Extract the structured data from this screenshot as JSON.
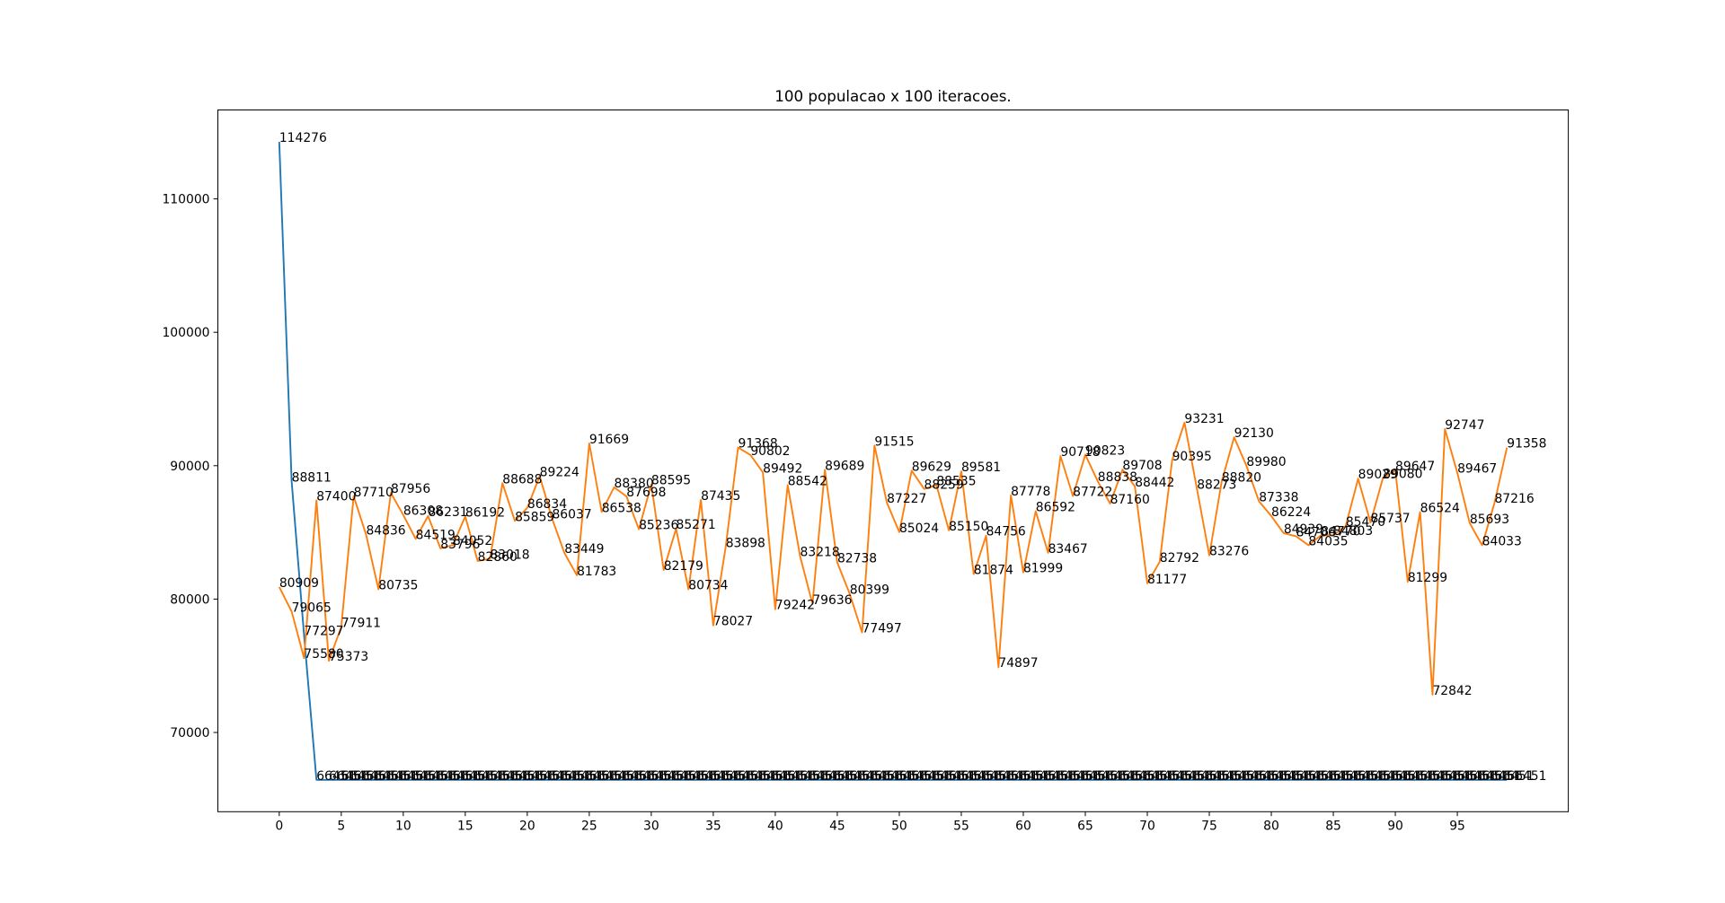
{
  "chart_data": {
    "type": "line",
    "title": "100 populacao x 100 iteracoes.",
    "x": [
      0,
      1,
      2,
      3,
      4,
      5,
      6,
      7,
      8,
      9,
      10,
      11,
      12,
      13,
      14,
      15,
      16,
      17,
      18,
      19,
      20,
      21,
      22,
      23,
      24,
      25,
      26,
      27,
      28,
      29,
      30,
      31,
      32,
      33,
      34,
      35,
      36,
      37,
      38,
      39,
      40,
      41,
      42,
      43,
      44,
      45,
      46,
      47,
      48,
      49,
      50,
      51,
      52,
      53,
      54,
      55,
      56,
      57,
      58,
      59,
      60,
      61,
      62,
      63,
      64,
      65,
      66,
      67,
      68,
      69,
      70,
      71,
      72,
      73,
      74,
      75,
      76,
      77,
      78,
      79,
      80,
      81,
      82,
      83,
      84,
      85,
      86,
      87,
      88,
      89,
      90,
      91,
      92,
      93,
      94,
      95,
      96,
      97,
      98,
      99
    ],
    "series": [
      {
        "color": "#1f77b4",
        "values": [
          114276,
          88811,
          77297,
          66451,
          66451,
          66451,
          66451,
          66451,
          66451,
          66451,
          66451,
          66451,
          66451,
          66451,
          66451,
          66451,
          66451,
          66451,
          66451,
          66451,
          66451,
          66451,
          66451,
          66451,
          66451,
          66451,
          66451,
          66451,
          66451,
          66451,
          66451,
          66451,
          66451,
          66451,
          66451,
          66451,
          66451,
          66451,
          66451,
          66451,
          66451,
          66451,
          66451,
          66451,
          66451,
          66451,
          66451,
          66451,
          66451,
          66451,
          66451,
          66451,
          66451,
          66451,
          66451,
          66451,
          66451,
          66451,
          66451,
          66451,
          66451,
          66451,
          66451,
          66451,
          66451,
          66451,
          66451,
          66451,
          66451,
          66451,
          66451,
          66451,
          66451,
          66451,
          66451,
          66451,
          66451,
          66451,
          66451,
          66451,
          66451,
          66451,
          66451,
          66451,
          66451,
          66451,
          66451,
          66451,
          66451,
          66451,
          66451,
          66451,
          66451,
          66451,
          66451,
          66451,
          66451,
          66451,
          66451,
          66451
        ]
      },
      {
        "color": "#ff7f0e",
        "values": [
          80909,
          79065,
          75580,
          87400,
          75373,
          77911,
          87710,
          84836,
          80735,
          87956,
          86308,
          84519,
          86231,
          83796,
          84052,
          86192,
          82860,
          83018,
          88688,
          85859,
          86834,
          89224,
          86037,
          83449,
          81783,
          91669,
          86538,
          88380,
          87698,
          85236,
          88595,
          82179,
          85271,
          80734,
          87435,
          78027,
          83898,
          91368,
          90802,
          89492,
          79242,
          88542,
          83218,
          79636,
          89689,
          82738,
          80399,
          77497,
          91515,
          87227,
          85024,
          89629,
          88259,
          88535,
          85150,
          89581,
          81874,
          84756,
          74897,
          87778,
          81999,
          86592,
          83467,
          90718,
          87722,
          90823,
          88838,
          87160,
          89708,
          88442,
          81177,
          82792,
          90395,
          93231,
          88273,
          83276,
          88820,
          92130,
          89980,
          87338,
          86224,
          84939,
          84706,
          84035,
          84770,
          84803,
          85470,
          89029,
          85737,
          89080,
          89647,
          81299,
          86524,
          72842,
          92747,
          89467,
          85693,
          84033,
          87216,
          91358
        ]
      }
    ],
    "xlim": [
      -4.95,
      103.95
    ],
    "ylim": [
      64060,
      116667
    ],
    "xticks": [
      0,
      5,
      10,
      15,
      20,
      25,
      30,
      35,
      40,
      45,
      50,
      55,
      60,
      65,
      70,
      75,
      80,
      85,
      90,
      95
    ],
    "yticks": [
      70000,
      80000,
      90000,
      100000,
      110000
    ]
  }
}
